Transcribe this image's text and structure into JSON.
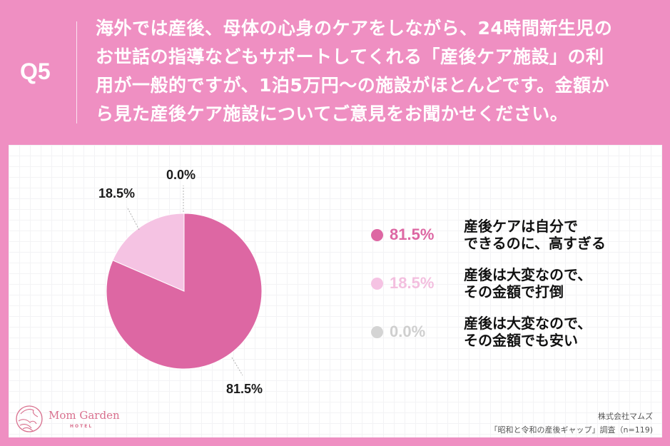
{
  "header": {
    "question_label": "Q5",
    "question_lines": [
      "海外では産後、母体の心身のケアをしながら、24時間新生児の",
      "お世話の指導などもサポートしてくれる「産後ケア施設」の利",
      "用が一般的ですが、1泊5万円〜の施設がほとんどです。金額か",
      "ら見た産後ケア施設についてご意見をお聞かせください。"
    ]
  },
  "colors": {
    "background": "#ef8fc2",
    "slice_1": "#dd67a3",
    "slice_2": "#f5c3e3",
    "slice_3": "#d4d4d4",
    "legend_pct_1": "#dd67a3",
    "legend_pct_2": "#f3bfdf",
    "legend_pct_3": "#cfcfcf"
  },
  "chart_data": {
    "type": "pie",
    "title": "海外では産後、母体の心身のケアをしながら、24時間新生児のお世話の指導などもサポートしてくれる「産後ケア施設」の利用が一般的ですが、1泊5万円〜の施設がほとんどです。金額から見た産後ケア施設についてご意見をお聞かせください。",
    "categories": [
      "産後ケアは自分でできるのに、高すぎる",
      "産後は大変なので、その金額で打倒",
      "産後は大変なので、その金額でも安い"
    ],
    "values": [
      81.5,
      18.5,
      0.0
    ],
    "unit": "%",
    "data_labels": [
      "81.5%",
      "18.5%",
      "0.0%"
    ],
    "colors": [
      "#dd67a3",
      "#f5c3e3",
      "#d4d4d4"
    ],
    "start_angle": "12 o'clock, clockwise",
    "legend_position": "right",
    "n": 119
  },
  "pie_labels": {
    "slice_1": "81.5%",
    "slice_2": "18.5%",
    "slice_3": "0.0%"
  },
  "legend": [
    {
      "pct": "81.5%",
      "line1": "産後ケアは自分で",
      "line2": "できるのに、高すぎる"
    },
    {
      "pct": "18.5%",
      "line1": "産後は大変なので、",
      "line2": "その金額で打倒"
    },
    {
      "pct": "0.0%",
      "line1": "産後は大変なので、",
      "line2": "その金額でも安い"
    }
  ],
  "footer": {
    "logo_name": "Mom Garden",
    "logo_sub": "HOTEL",
    "source_company": "株式会社マムズ",
    "source_survey": "「昭和と令和の産後ギャップ」調査（n=119)"
  }
}
